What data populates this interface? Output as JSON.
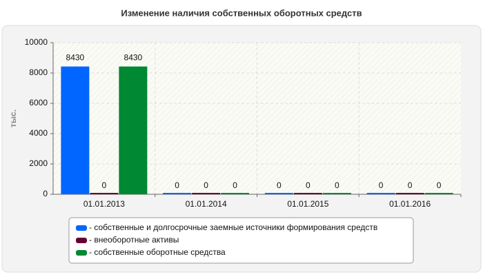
{
  "chart_data": {
    "type": "bar",
    "title": "Изменение наличия собственных оборотных средств",
    "y_label": "тыс.",
    "categories": [
      "01.01.2013",
      "01.01.2014",
      "01.01.2015",
      "01.01.2016"
    ],
    "series": [
      {
        "name": "- собственные и долгосрочные заемные источники формирования средств",
        "color": "#0066ff",
        "values": [
          8430,
          0,
          0,
          0
        ]
      },
      {
        "name": "- внеоборотные активы",
        "color": "#660033",
        "values": [
          0,
          0,
          0,
          0
        ]
      },
      {
        "name": "- собственные оборотные средства",
        "color": "#008833",
        "values": [
          8430,
          0,
          0,
          0
        ]
      }
    ],
    "ylim": [
      0,
      10000
    ],
    "yticks": [
      0,
      2000,
      4000,
      6000,
      8000,
      10000
    ],
    "grid": true
  }
}
